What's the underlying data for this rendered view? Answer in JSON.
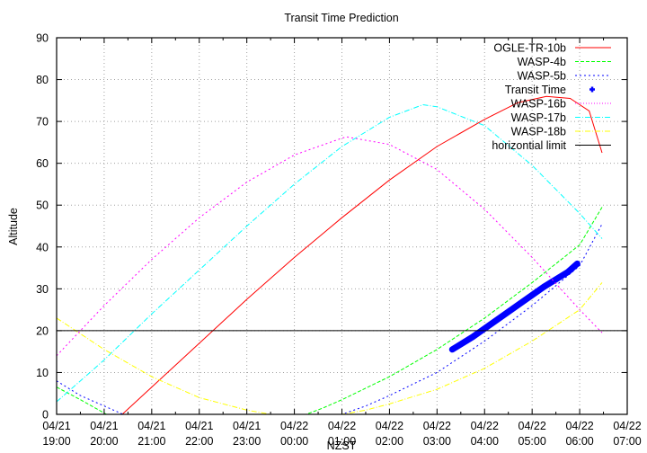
{
  "chart_data": {
    "type": "line",
    "title": "Transit Time Prediction",
    "xlabel": "NZST",
    "ylabel": "Altitude",
    "ylim": [
      0,
      90
    ],
    "yticks": [
      0,
      10,
      20,
      30,
      40,
      50,
      60,
      70,
      80,
      90
    ],
    "xticks": [
      {
        "date": "04/21",
        "time": "19:00"
      },
      {
        "date": "04/21",
        "time": "20:00"
      },
      {
        "date": "04/21",
        "time": "21:00"
      },
      {
        "date": "04/21",
        "time": "22:00"
      },
      {
        "date": "04/21",
        "time": "23:00"
      },
      {
        "date": "04/22",
        "time": "00:00"
      },
      {
        "date": "04/22",
        "time": "01:00"
      },
      {
        "date": "04/22",
        "time": "02:00"
      },
      {
        "date": "04/22",
        "time": "03:00"
      },
      {
        "date": "04/22",
        "time": "04:00"
      },
      {
        "date": "04/22",
        "time": "05:00"
      },
      {
        "date": "04/22",
        "time": "06:00"
      },
      {
        "date": "04/22",
        "time": "07:00"
      }
    ],
    "x_unit": "hours since 04/21 19:00",
    "xlim": [
      0,
      12
    ],
    "grid": true,
    "legend_position": "top-right",
    "series": [
      {
        "name": "OGLE-TR-10b",
        "color": "#ff0000",
        "style": "solid",
        "points": [
          [
            1.38,
            0
          ],
          [
            2,
            6.5
          ],
          [
            3,
            17
          ],
          [
            4,
            27.5
          ],
          [
            5,
            37.5
          ],
          [
            6,
            47
          ],
          [
            7,
            56
          ],
          [
            8,
            64
          ],
          [
            9,
            70.5
          ],
          [
            9.7,
            74.5
          ],
          [
            10.3,
            76
          ],
          [
            10.8,
            75.5
          ],
          [
            11.2,
            73
          ],
          [
            11.6,
            68
          ],
          [
            12,
            64
          ],
          [
            11.42,
            62.5
          ]
        ]
      },
      {
        "name": "WASP-4b",
        "color": "#00ff00",
        "style": "dashed",
        "points": [
          [
            0,
            6.5
          ],
          [
            0.5,
            3.5
          ],
          [
            1.05,
            0
          ],
          [
            5.25,
            0
          ],
          [
            5.6,
            1.5
          ],
          [
            6,
            3.5
          ],
          [
            7,
            9
          ],
          [
            8,
            15.5
          ],
          [
            9,
            23
          ],
          [
            10,
            31.5
          ],
          [
            11,
            40.5
          ],
          [
            11.47,
            49.5
          ]
        ]
      },
      {
        "name": "WASP-5b",
        "color": "#0000ff",
        "style": "dotted",
        "points": [
          [
            0,
            8
          ],
          [
            0.5,
            4.5
          ],
          [
            1.4,
            0
          ],
          [
            6,
            0
          ],
          [
            6.5,
            2
          ],
          [
            7,
            4.5
          ],
          [
            8,
            10
          ],
          [
            8.6,
            14.5
          ],
          [
            9,
            17.5
          ],
          [
            10,
            26
          ],
          [
            11,
            35.5
          ],
          [
            11.47,
            45.5
          ]
        ]
      },
      {
        "name": "Transit Time",
        "color": "#0000ff",
        "style": "points",
        "points": [
          [
            8.32,
            15.5
          ],
          [
            8.75,
            18.5
          ],
          [
            9.25,
            22.5
          ],
          [
            9.75,
            26.5
          ],
          [
            10.25,
            30.5
          ],
          [
            10.75,
            34
          ],
          [
            10.95,
            36
          ]
        ]
      },
      {
        "name": "WASP-16b",
        "color": "#ff00ff",
        "style": "dotted",
        "points": [
          [
            0,
            14
          ],
          [
            1,
            26
          ],
          [
            2,
            37
          ],
          [
            3,
            47
          ],
          [
            4,
            55.5
          ],
          [
            5,
            62
          ],
          [
            6,
            66
          ],
          [
            6.1,
            66.3
          ],
          [
            7,
            64.5
          ],
          [
            8,
            58.5
          ],
          [
            9,
            49
          ],
          [
            10,
            37.5
          ],
          [
            11,
            25
          ],
          [
            11.47,
            19.5
          ]
        ]
      },
      {
        "name": "WASP-17b",
        "color": "#00ffff",
        "style": "dash-dot",
        "points": [
          [
            0,
            3
          ],
          [
            1,
            13
          ],
          [
            2,
            24
          ],
          [
            3,
            34.5
          ],
          [
            4,
            45
          ],
          [
            5,
            55
          ],
          [
            6,
            64
          ],
          [
            7,
            71
          ],
          [
            7.7,
            74
          ],
          [
            8,
            73.5
          ],
          [
            9,
            69
          ],
          [
            10,
            59.5
          ],
          [
            11,
            48
          ],
          [
            11.47,
            42
          ]
        ]
      },
      {
        "name": "WASP-18b",
        "color": "#ffff00",
        "style": "dash-dot",
        "points": [
          [
            0,
            23
          ],
          [
            1,
            15.5
          ],
          [
            2,
            9
          ],
          [
            3,
            4
          ],
          [
            4,
            1
          ],
          [
            4.5,
            0
          ],
          [
            6,
            0
          ],
          [
            6.5,
            1
          ],
          [
            7,
            2.5
          ],
          [
            8,
            6
          ],
          [
            9,
            11
          ],
          [
            10,
            17.5
          ],
          [
            11,
            25
          ],
          [
            11.47,
            31.5
          ]
        ]
      },
      {
        "name": "horizontial limit",
        "color": "#000000",
        "style": "solid",
        "points": [
          [
            0,
            20
          ],
          [
            12,
            20
          ]
        ]
      }
    ]
  },
  "legend": [
    {
      "label": "OGLE-TR-10b",
      "color": "#ff0000",
      "dash": ""
    },
    {
      "label": "WASP-4b",
      "color": "#00ff00",
      "dash": "4,2"
    },
    {
      "label": "WASP-5b",
      "color": "#0000ff",
      "dash": "2,3"
    },
    {
      "label": "Transit Time",
      "color": "#0000ff",
      "dash": "point"
    },
    {
      "label": "WASP-16b",
      "color": "#ff00ff",
      "dash": "1,2"
    },
    {
      "label": "WASP-17b",
      "color": "#00ffff",
      "dash": "6,2,1,2"
    },
    {
      "label": "WASP-18b",
      "color": "#ffff00",
      "dash": "6,2,1,2"
    },
    {
      "label": "horizontial limit",
      "color": "#000000",
      "dash": ""
    }
  ]
}
